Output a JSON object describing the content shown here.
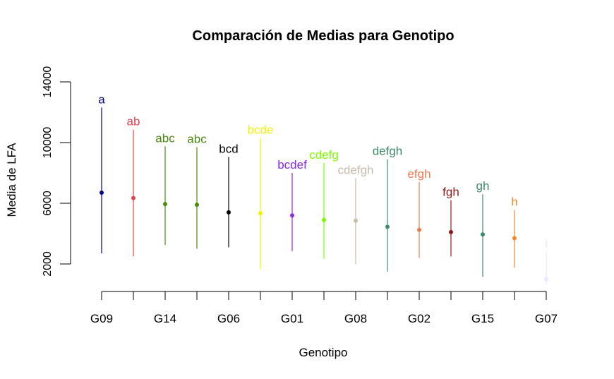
{
  "chart_data": {
    "type": "errorbar",
    "title": "Comparación de Medias para Genotipo",
    "xlabel": "Genotipo",
    "ylabel": "Media de LFA",
    "ylim": [
      0,
      14000
    ],
    "yticks": [
      2000,
      6000,
      10000,
      14000
    ],
    "xtick_labels": [
      "G09",
      "G14",
      "G06",
      "G01",
      "G08",
      "G02",
      "G15",
      "G07"
    ],
    "grid": false,
    "legend": "none",
    "points": [
      {
        "x": 1,
        "mean": 6700,
        "lower": 2700,
        "upper": 12300,
        "group": "a",
        "color": "#00008B"
      },
      {
        "x": 2,
        "mean": 6350,
        "lower": 2500,
        "upper": 10850,
        "group": "ab",
        "color": "#E0434B"
      },
      {
        "x": 3,
        "mean": 5950,
        "lower": 3250,
        "upper": 9750,
        "group": "abc",
        "color": "#4A8A10"
      },
      {
        "x": 4,
        "mean": 5900,
        "lower": 3000,
        "upper": 9700,
        "group": "abc",
        "color": "#4A8A10"
      },
      {
        "x": 5,
        "mean": 5400,
        "lower": 3100,
        "upper": 9050,
        "group": "bcd",
        "color": "#000000"
      },
      {
        "x": 6,
        "mean": 5350,
        "lower": 1650,
        "upper": 10300,
        "group": "bcde",
        "color": "#F2F200"
      },
      {
        "x": 7,
        "mean": 5200,
        "lower": 2850,
        "upper": 8000,
        "group": "bcdef",
        "color": "#8B2BE2"
      },
      {
        "x": 8,
        "mean": 4900,
        "lower": 2350,
        "upper": 8650,
        "group": "cdefg",
        "color": "#7CFC00"
      },
      {
        "x": 9,
        "mean": 4850,
        "lower": 2000,
        "upper": 7650,
        "group": "cdefgh",
        "color": "#C8BBAA"
      },
      {
        "x": 10,
        "mean": 4450,
        "lower": 1500,
        "upper": 8900,
        "group": "defgh",
        "color": "#3E8B6A"
      },
      {
        "x": 11,
        "mean": 4250,
        "lower": 2400,
        "upper": 7400,
        "group": "efgh",
        "color": "#EE7B50"
      },
      {
        "x": 12,
        "mean": 4100,
        "lower": 2500,
        "upper": 6200,
        "group": "fgh",
        "color": "#8B1A1A"
      },
      {
        "x": 13,
        "mean": 3950,
        "lower": 1150,
        "upper": 6600,
        "group": "gh",
        "color": "#3E8B6A"
      },
      {
        "x": 14,
        "mean": 3700,
        "lower": 1750,
        "upper": 5550,
        "group": "h",
        "color": "#F08A2A"
      },
      {
        "x": 15,
        "mean": 1000,
        "lower": 700,
        "upper": 2800,
        "group": "i",
        "color": "#E8E8F8"
      }
    ]
  }
}
